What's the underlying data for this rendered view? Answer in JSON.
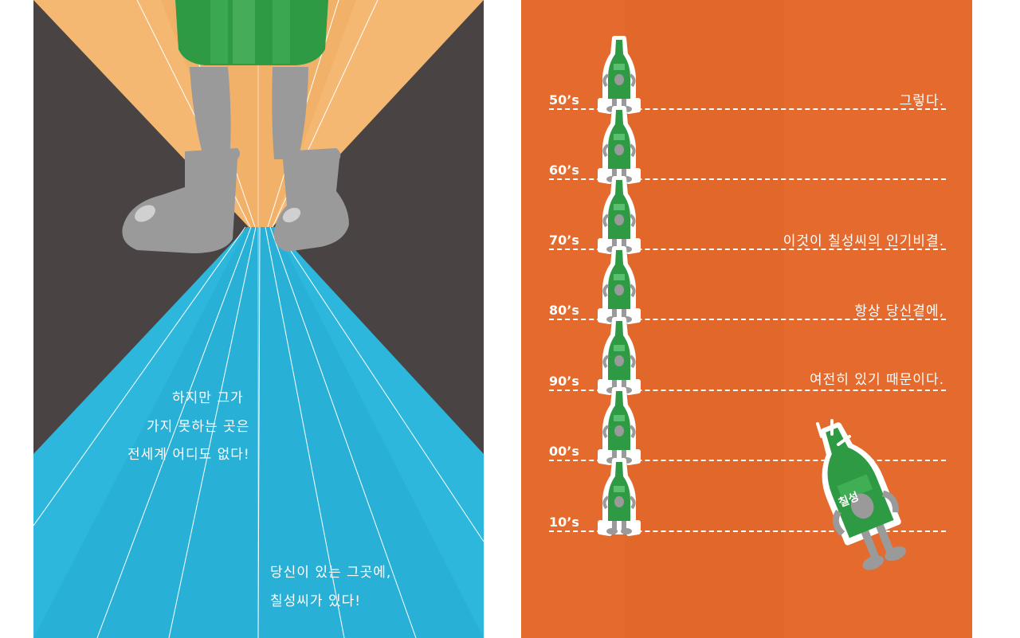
{
  "left_panel": {
    "text_lines_1": [
      "하지만 그가",
      "가지 못하는 곳은",
      "전세계 어디도 없다!"
    ],
    "text_lines_2": [
      "당신이 있는 그곳에,",
      "칠성씨가 있다!"
    ],
    "colors": {
      "dark": "#494344",
      "beam": "#f5b872",
      "floor": "#2eb7dc",
      "bottle": "#2f9a44",
      "legs": "#9a9a9a"
    }
  },
  "right_panel": {
    "background": "#e46a2d",
    "rows": [
      {
        "decade": "50’s",
        "caption": "그렇다."
      },
      {
        "decade": "60’s",
        "caption": ""
      },
      {
        "decade": "70’s",
        "caption": "이것이 칠성씨의 인기비결."
      },
      {
        "decade": "80’s",
        "caption": "항상 당신곁에,"
      },
      {
        "decade": "90’s",
        "caption": "여전히 있기 때문이다."
      },
      {
        "decade": "00’s",
        "caption": ""
      },
      {
        "decade": "10’s",
        "caption": ""
      }
    ],
    "big_bottle_label": "칠성"
  }
}
